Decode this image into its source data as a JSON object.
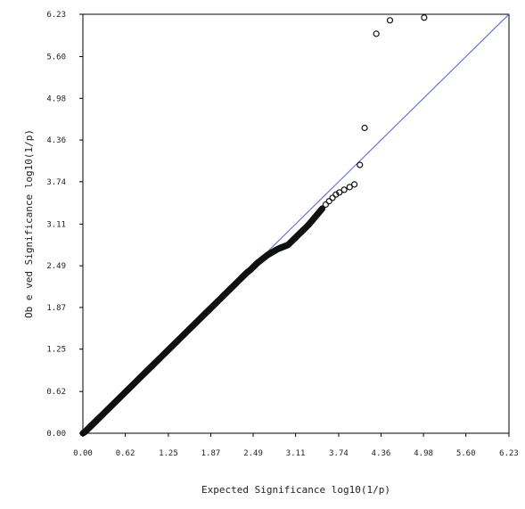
{
  "chart_data": {
    "type": "scatter",
    "title": "",
    "xlabel": "Expected Significance log10(1/p)",
    "ylabel": "Ob e ved Significance log10(1/p)",
    "xlim": [
      0,
      6.23
    ],
    "ylim": [
      0,
      6.23
    ],
    "x_ticks": [
      "0.00",
      "0.62",
      "1.25",
      "1.87",
      "2.49",
      "3.11",
      "3.74",
      "4.36",
      "4.98",
      "5.60",
      "6.23"
    ],
    "y_ticks": [
      "0.00",
      "0.62",
      "1.25",
      "1.87",
      "2.49",
      "3.11",
      "3.74",
      "4.36",
      "4.98",
      "5.60",
      "6.23"
    ],
    "grid": false,
    "reference_line": {
      "from": [
        0,
        0
      ],
      "to": [
        6.23,
        6.23
      ],
      "color": "#4a5fd0"
    },
    "marker_color": "#111111",
    "series": [
      {
        "points": [
          [
            0.0,
            0.0
          ],
          [
            0.03,
            0.02
          ],
          [
            0.06,
            0.05
          ],
          [
            0.09,
            0.08
          ],
          [
            0.12,
            0.11
          ],
          [
            0.15,
            0.14
          ],
          [
            0.18,
            0.17
          ],
          [
            0.21,
            0.2
          ],
          [
            0.25,
            0.24
          ],
          [
            0.3,
            0.29
          ],
          [
            0.35,
            0.34
          ],
          [
            0.4,
            0.39
          ],
          [
            0.45,
            0.44
          ],
          [
            0.5,
            0.49
          ],
          [
            0.55,
            0.54
          ],
          [
            0.6,
            0.59
          ],
          [
            0.65,
            0.64
          ],
          [
            0.7,
            0.69
          ],
          [
            0.75,
            0.74
          ],
          [
            0.8,
            0.79
          ],
          [
            0.85,
            0.84
          ],
          [
            0.9,
            0.89
          ],
          [
            0.95,
            0.94
          ],
          [
            1.0,
            0.99
          ],
          [
            1.05,
            1.04
          ],
          [
            1.1,
            1.09
          ],
          [
            1.15,
            1.14
          ],
          [
            1.2,
            1.19
          ],
          [
            1.25,
            1.24
          ],
          [
            1.3,
            1.29
          ],
          [
            1.35,
            1.34
          ],
          [
            1.4,
            1.39
          ],
          [
            1.45,
            1.44
          ],
          [
            1.5,
            1.49
          ],
          [
            1.55,
            1.54
          ],
          [
            1.6,
            1.59
          ],
          [
            1.65,
            1.64
          ],
          [
            1.7,
            1.69
          ],
          [
            1.75,
            1.74
          ],
          [
            1.8,
            1.79
          ],
          [
            1.85,
            1.84
          ],
          [
            1.9,
            1.89
          ],
          [
            1.95,
            1.94
          ],
          [
            2.0,
            1.99
          ],
          [
            2.05,
            2.04
          ],
          [
            2.1,
            2.09
          ],
          [
            2.15,
            2.14
          ],
          [
            2.2,
            2.19
          ],
          [
            2.25,
            2.24
          ],
          [
            2.3,
            2.29
          ],
          [
            2.35,
            2.34
          ],
          [
            2.4,
            2.39
          ],
          [
            2.45,
            2.43
          ],
          [
            2.5,
            2.48
          ],
          [
            2.55,
            2.53
          ],
          [
            2.6,
            2.57
          ],
          [
            2.65,
            2.61
          ],
          [
            2.7,
            2.65
          ],
          [
            2.75,
            2.68
          ],
          [
            2.8,
            2.71
          ],
          [
            2.85,
            2.74
          ],
          [
            2.9,
            2.76
          ],
          [
            2.95,
            2.78
          ],
          [
            3.0,
            2.8
          ],
          [
            3.05,
            2.85
          ],
          [
            3.1,
            2.9
          ],
          [
            3.15,
            2.95
          ],
          [
            3.2,
            3.0
          ],
          [
            3.25,
            3.05
          ],
          [
            3.3,
            3.1
          ],
          [
            3.35,
            3.16
          ],
          [
            3.4,
            3.22
          ],
          [
            3.45,
            3.28
          ],
          [
            3.5,
            3.34
          ],
          [
            3.55,
            3.4
          ],
          [
            3.6,
            3.45
          ],
          [
            3.65,
            3.5
          ],
          [
            3.7,
            3.55
          ],
          [
            3.75,
            3.58
          ],
          [
            3.82,
            3.62
          ],
          [
            3.9,
            3.66
          ],
          [
            3.97,
            3.7
          ],
          [
            4.05,
            3.99
          ],
          [
            4.12,
            4.54
          ],
          [
            4.29,
            5.94
          ],
          [
            4.49,
            6.14
          ],
          [
            4.99,
            6.18
          ]
        ]
      }
    ]
  }
}
